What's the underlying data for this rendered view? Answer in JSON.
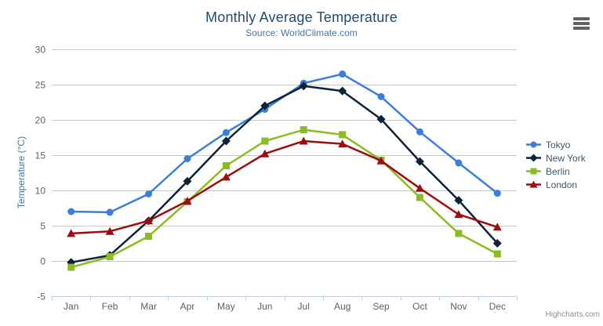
{
  "chart": {
    "title": "Monthly Average Temperature",
    "subtitle": "Source: WorldClimate.com",
    "credits_label": "Highcharts.com"
  },
  "chart_data": {
    "type": "line",
    "title": "Monthly Average Temperature",
    "subtitle": "Source: WorldClimate.com",
    "xlabel": "",
    "ylabel": "Temperature (°C)",
    "categories": [
      "Jan",
      "Feb",
      "Mar",
      "Apr",
      "May",
      "Jun",
      "Jul",
      "Aug",
      "Sep",
      "Oct",
      "Nov",
      "Dec"
    ],
    "ylim": [
      -5,
      30
    ],
    "yticks": [
      -5,
      0,
      5,
      10,
      15,
      20,
      25,
      30
    ],
    "grid": true,
    "legend_position": "right",
    "series": [
      {
        "name": "Tokyo",
        "color": "#3b7fdb",
        "marker": "circle",
        "values": [
          7.0,
          6.9,
          9.5,
          14.5,
          18.2,
          21.5,
          25.2,
          26.5,
          23.3,
          18.3,
          13.9,
          9.6
        ]
      },
      {
        "name": "New York",
        "color": "#0d233a",
        "marker": "diamond",
        "values": [
          -0.2,
          0.8,
          5.7,
          11.3,
          17.0,
          22.0,
          24.8,
          24.1,
          20.1,
          14.1,
          8.6,
          2.5
        ]
      },
      {
        "name": "Berlin",
        "color": "#8bbc21",
        "marker": "square",
        "values": [
          -0.9,
          0.6,
          3.5,
          8.4,
          13.5,
          17.0,
          18.6,
          17.9,
          14.3,
          9.0,
          3.9,
          1.0
        ]
      },
      {
        "name": "London",
        "color": "#9c0d0d",
        "marker": "triangle",
        "values": [
          3.9,
          4.2,
          5.7,
          8.5,
          11.9,
          15.2,
          17.0,
          16.6,
          14.2,
          10.3,
          6.6,
          4.8
        ]
      }
    ]
  },
  "colors": {
    "title": "#274b6d",
    "subtitle": "#4d759e",
    "axis_label": "#606060",
    "axis_title": "#4572a7",
    "gridline": "#c8c8c8",
    "axis_line": "#c0d0e0",
    "legend_text": "#3e576f",
    "credits": "#909090",
    "menu_icon": "#61615f"
  }
}
